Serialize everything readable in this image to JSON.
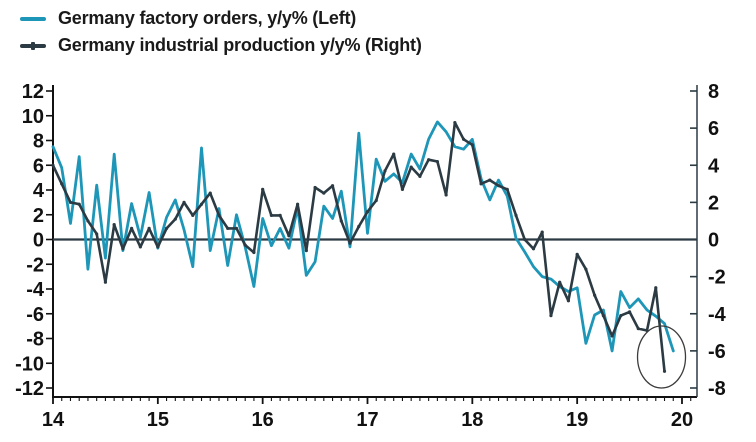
{
  "window": {
    "background": "#ffffff"
  },
  "legend": {
    "items": [
      {
        "label": "Germany factory orders, y/y% (Left)",
        "color": "#1e96b8",
        "axis": "left",
        "marker": "line"
      },
      {
        "label": "Germany industrial production y/y% (Right)",
        "color": "#2c3b43",
        "axis": "right",
        "marker": "line-with-tick"
      }
    ]
  },
  "chart_data": {
    "type": "line",
    "title": "",
    "frequency": "monthly",
    "x_start": "2014-01",
    "x_tick_labels": [
      "14",
      "15",
      "16",
      "17",
      "18",
      "19",
      "20"
    ],
    "left_axis": {
      "tick_labels": [
        "12",
        "10",
        "8",
        "6",
        "4",
        "2",
        "0",
        "-2",
        "-4",
        "-6",
        "-8",
        "-10",
        "-12"
      ],
      "ticks": [
        12,
        10,
        8,
        6,
        4,
        2,
        0,
        -2,
        -4,
        -6,
        -8,
        -10,
        -12
      ],
      "range": [
        -12.6,
        12.6
      ]
    },
    "right_axis": {
      "tick_labels": [
        "8",
        "6",
        "4",
        "2",
        "0",
        "-2",
        "-4",
        "-6",
        "-8"
      ],
      "ticks": [
        8,
        6,
        4,
        2,
        0,
        -2,
        -4,
        -6,
        -8
      ],
      "range": [
        -8.4,
        8.4
      ]
    },
    "grid": "off",
    "zero_line": {
      "shown": true,
      "color": "#2b3a43"
    },
    "legend_position": "top-left",
    "series": [
      {
        "name": "Germany factory orders, y/y% (Left)",
        "axis": "left",
        "color": "#1e96b8",
        "markers": false,
        "values": [
          7.5,
          5.8,
          1.3,
          6.7,
          -2.4,
          4.4,
          -1.5,
          6.9,
          -0.9,
          2.9,
          0.2,
          3.8,
          -0.7,
          1.8,
          3.2,
          0.8,
          -2.2,
          7.4,
          -0.9,
          2.5,
          -2.1,
          2.0,
          -0.6,
          -3.8,
          1.7,
          -0.5,
          0.9,
          -0.7,
          2.6,
          -2.9,
          -1.8,
          2.7,
          1.7,
          3.9,
          -0.6,
          8.6,
          0.5,
          6.5,
          4.7,
          5.3,
          4.6,
          6.9,
          5.7,
          8.1,
          9.5,
          8.7,
          7.5,
          7.3,
          8.1,
          4.9,
          3.2,
          4.8,
          3.5,
          0.1,
          -1.0,
          -2.2,
          -3.0,
          -3.2,
          -3.8,
          -4.2,
          -3.9,
          -8.4,
          -6.1,
          -5.7,
          -9.0,
          -4.2,
          -5.5,
          -4.8,
          -5.7,
          -6.2,
          -6.8,
          -9.0
        ]
      },
      {
        "name": "Germany industrial production y/y% (Right)",
        "axis": "right",
        "color": "#2c3b43",
        "markers": true,
        "values": [
          4.0,
          3.0,
          2.0,
          1.9,
          1.0,
          0.3,
          -2.3,
          0.8,
          -0.5,
          0.6,
          -0.4,
          0.6,
          -0.4,
          0.6,
          1.1,
          2.0,
          1.3,
          1.9,
          2.5,
          1.3,
          0.6,
          0.6,
          -0.3,
          -0.7,
          2.7,
          1.3,
          1.3,
          0.2,
          1.9,
          -0.6,
          2.8,
          2.5,
          2.9,
          1.0,
          -0.2,
          0.7,
          1.5,
          2.1,
          3.7,
          4.6,
          2.7,
          3.9,
          3.4,
          4.3,
          4.2,
          2.4,
          6.3,
          5.4,
          5.1,
          3.0,
          3.2,
          2.9,
          2.7,
          1.3,
          0.0,
          -0.5,
          0.4,
          -4.1,
          -2.3,
          -3.3,
          -0.8,
          -1.6,
          -3.0,
          -4.1,
          -5.2,
          -4.1,
          -3.9,
          -4.8,
          -4.9,
          -2.6,
          -7.1
        ]
      }
    ],
    "annotation": {
      "type": "ellipse",
      "note": "circle highlighting latest sharp drop in both series",
      "color": "#3c3c3c",
      "around_month_index": 70
    }
  }
}
